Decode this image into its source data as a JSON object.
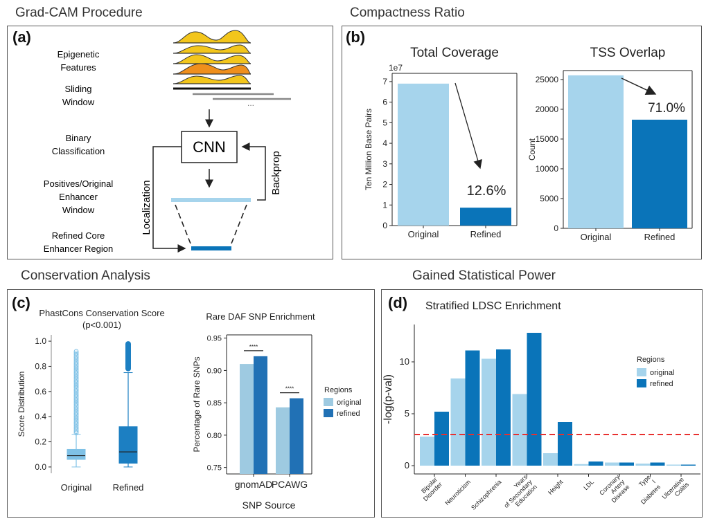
{
  "sections": {
    "a_title": "Grad-CAM Procedure",
    "b_title": "Compactness Ratio",
    "c_title": "Conservation Analysis",
    "d_title": "Gained Statistical Power"
  },
  "panels": {
    "a": "(a)",
    "b": "(b)",
    "c": "(c)",
    "d": "(d)"
  },
  "diagram_a": {
    "epigenetic": "Epigenetic Features",
    "sliding": "Sliding Window",
    "dots": "...",
    "binary": "Binary Classification",
    "cnn": "CNN",
    "positives": "Positives/Original Enhancer Window",
    "refined": "Refined Core Enhancer Region",
    "localization": "Localization",
    "backprop": "Backprop"
  },
  "colors": {
    "original": "#a6d4ec",
    "refined": "#0a74b9",
    "box_original": "#7fc1e6",
    "box_refined": "#1c7fc2",
    "dark_original": "#9ecae1",
    "dark_refined": "#2171b5",
    "threshold": "#e8302f",
    "peak_yellow": "#f3c61c",
    "peak_orange": "#ef8f1c"
  },
  "chart_data": [
    {
      "id": "total-coverage",
      "type": "bar",
      "title": "Total Coverage",
      "ylabel": "Ten Million Base Pairs",
      "multiplier": "1e7",
      "categories": [
        "Original",
        "Refined"
      ],
      "values": [
        6.9,
        0.87
      ],
      "ylim": [
        0,
        7.4
      ],
      "yticks": [
        "0",
        "1",
        "2",
        "3",
        "4",
        "5",
        "6",
        "7"
      ],
      "annotation": "12.6%"
    },
    {
      "id": "tss-overlap",
      "type": "bar",
      "title": "TSS Overlap",
      "ylabel": "Count",
      "categories": [
        "Original",
        "Refined"
      ],
      "values": [
        25700,
        18250
      ],
      "ylim": [
        0,
        26500
      ],
      "yticks": [
        "0",
        "5000",
        "10000",
        "15000",
        "20000",
        "25000"
      ],
      "annotation": "71.0%"
    },
    {
      "id": "phastcons",
      "type": "box",
      "title": "PhastCons Conservation Score",
      "subtitle": "(p<0.001)",
      "ylabel": "Score Distribution",
      "categories": [
        "Original",
        "Refined"
      ],
      "ylim": [
        -0.05,
        1.05
      ],
      "yticks": [
        "0.0",
        "0.2",
        "0.4",
        "0.6",
        "0.8",
        "1.0"
      ],
      "boxes": [
        {
          "whislo": 0.0,
          "q1": 0.06,
          "med": 0.09,
          "q3": 0.14,
          "whishi": 0.26,
          "fliers_from": 0.27,
          "fliers_to": 0.92
        },
        {
          "whislo": 0.0,
          "q1": 0.03,
          "med": 0.12,
          "q3": 0.32,
          "whishi": 0.75,
          "fliers_from": 0.76,
          "fliers_to": 1.0
        }
      ]
    },
    {
      "id": "rare-daf",
      "type": "bar",
      "title": "Rare DAF SNP Enrichment",
      "ylabel": "Percentage of Rare SNPs",
      "xlabel": "SNP Source",
      "categories": [
        "gnomAD",
        "PCAWG"
      ],
      "ylim": [
        0.74,
        0.955
      ],
      "yticks": [
        "0.75",
        "0.80",
        "0.85",
        "0.90",
        "0.95"
      ],
      "legend_title": "Regions",
      "significance": "****",
      "series": [
        {
          "name": "original",
          "values": [
            0.91,
            0.843
          ]
        },
        {
          "name": "refined",
          "values": [
            0.922,
            0.857
          ]
        }
      ]
    },
    {
      "id": "ldsc",
      "type": "bar",
      "title": "Stratified LDSC Enrichment",
      "ylabel": "-log(p-val)",
      "categories": [
        "Bipolar Disorder",
        "Neuroticism",
        "Schizophrenia",
        "Years of Secondary Education",
        "Height",
        "LDL",
        "Coronary Artery Disease",
        "Type I Diabetes",
        "Ulcerative Colitis"
      ],
      "ylim": [
        -0.8,
        13.6
      ],
      "yticks": [
        "0",
        "5",
        "10"
      ],
      "legend_title": "Regions",
      "threshold": 3.0,
      "series": [
        {
          "name": "original",
          "values": [
            2.8,
            8.4,
            10.3,
            6.9,
            1.2,
            0.15,
            0.3,
            0.2,
            0.1
          ]
        },
        {
          "name": "refined",
          "values": [
            5.2,
            11.1,
            11.2,
            12.8,
            4.2,
            0.4,
            0.3,
            0.3,
            0.1
          ]
        }
      ]
    }
  ]
}
